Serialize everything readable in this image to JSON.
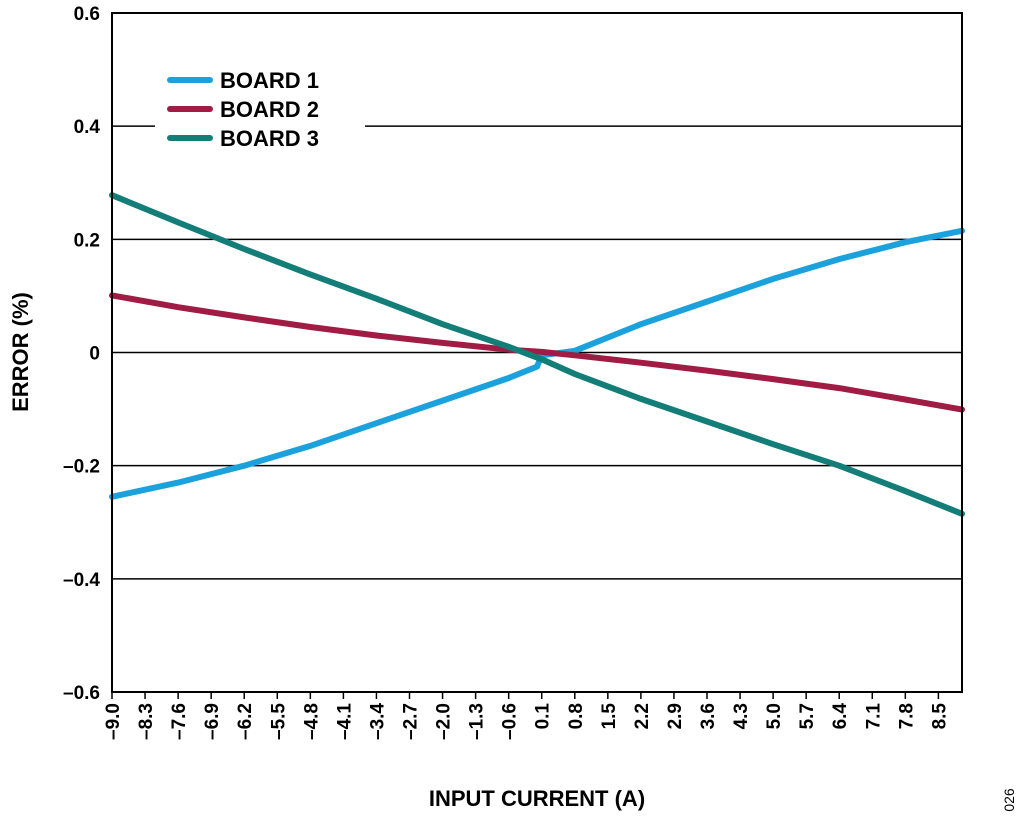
{
  "chart_data": {
    "type": "line",
    "xlabel": "INPUT CURRENT (A)",
    "ylabel": "ERROR (%)",
    "figure_id": "026",
    "ylim": [
      -0.6,
      0.6
    ],
    "xlim": [
      -9.0,
      9.0
    ],
    "y_ticks": [
      {
        "value": 0.6,
        "label": "0.6"
      },
      {
        "value": 0.4,
        "label": "0.4"
      },
      {
        "value": 0.2,
        "label": "0.2"
      },
      {
        "value": 0,
        "label": "0"
      },
      {
        "value": -0.2,
        "label": "–0.2"
      },
      {
        "value": -0.4,
        "label": "–0.4"
      },
      {
        "value": -0.6,
        "label": "–0.6"
      }
    ],
    "x_ticks": [
      {
        "value": -9.0,
        "label": "–9.0"
      },
      {
        "value": -8.3,
        "label": "–8.3"
      },
      {
        "value": -7.6,
        "label": "–7.6"
      },
      {
        "value": -6.9,
        "label": "–6.9"
      },
      {
        "value": -6.2,
        "label": "–6.2"
      },
      {
        "value": -5.5,
        "label": "–5.5"
      },
      {
        "value": -4.8,
        "label": "–4.8"
      },
      {
        "value": -4.1,
        "label": "–4.1"
      },
      {
        "value": -3.4,
        "label": "–3.4"
      },
      {
        "value": -2.7,
        "label": "–2.7"
      },
      {
        "value": -2.0,
        "label": "–2.0"
      },
      {
        "value": -1.3,
        "label": "–1.3"
      },
      {
        "value": -0.6,
        "label": "–0.6"
      },
      {
        "value": 0.1,
        "label": "0.1"
      },
      {
        "value": 0.8,
        "label": "0.8"
      },
      {
        "value": 1.5,
        "label": "1.5"
      },
      {
        "value": 2.2,
        "label": "2.2"
      },
      {
        "value": 2.9,
        "label": "2.9"
      },
      {
        "value": 3.6,
        "label": "3.6"
      },
      {
        "value": 4.3,
        "label": "4.3"
      },
      {
        "value": 5.0,
        "label": "5.0"
      },
      {
        "value": 5.7,
        "label": "5.7"
      },
      {
        "value": 6.4,
        "label": "6.4"
      },
      {
        "value": 7.1,
        "label": "7.1"
      },
      {
        "value": 7.8,
        "label": "7.8"
      },
      {
        "value": 8.5,
        "label": "8.5"
      }
    ],
    "grid": "horizontal",
    "legend_position": "top-left",
    "series": [
      {
        "name": "BOARD 1",
        "color": "#1ba1dc",
        "x": [
          -9.0,
          -7.6,
          -6.2,
          -4.8,
          -3.4,
          -2.0,
          -0.6,
          0.0,
          0.1,
          0.8,
          2.2,
          3.6,
          5.0,
          6.4,
          7.8,
          9.0
        ],
        "y": [
          -0.255,
          -0.23,
          -0.2,
          -0.165,
          -0.125,
          -0.085,
          -0.045,
          -0.025,
          -0.005,
          0.003,
          0.05,
          0.09,
          0.13,
          0.165,
          0.195,
          0.215
        ]
      },
      {
        "name": "BOARD 2",
        "color": "#a01c44",
        "x": [
          -9.0,
          -7.6,
          -6.2,
          -4.8,
          -3.4,
          -2.0,
          -0.6,
          0.1,
          0.8,
          2.2,
          3.6,
          5.0,
          6.4,
          7.8,
          9.0
        ],
        "y": [
          0.101,
          0.08,
          0.062,
          0.045,
          0.03,
          0.017,
          0.005,
          0.001,
          -0.005,
          -0.018,
          -0.032,
          -0.047,
          -0.063,
          -0.083,
          -0.101
        ]
      },
      {
        "name": "BOARD 3",
        "color": "#137d78",
        "x": [
          -9.0,
          -7.6,
          -6.2,
          -4.8,
          -3.4,
          -2.0,
          -0.6,
          0.1,
          0.8,
          2.2,
          3.6,
          5.0,
          6.4,
          7.8,
          9.0
        ],
        "y": [
          0.278,
          0.23,
          0.183,
          0.138,
          0.095,
          0.05,
          0.01,
          -0.012,
          -0.038,
          -0.082,
          -0.122,
          -0.162,
          -0.2,
          -0.245,
          -0.285
        ]
      }
    ]
  }
}
